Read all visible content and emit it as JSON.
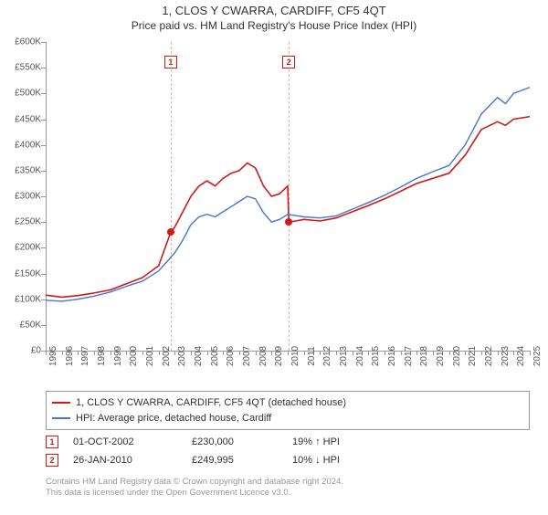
{
  "title": "1, CLOS Y CWARRA, CARDIFF, CF5 4QT",
  "subtitle": "Price paid vs. HM Land Registry's House Price Index (HPI)",
  "chart": {
    "type": "line",
    "y_axis": {
      "min": 0,
      "max": 600000,
      "tick_step": 50000,
      "tick_labels": [
        "£0",
        "£50K",
        "£100K",
        "£150K",
        "£200K",
        "£250K",
        "£300K",
        "£350K",
        "£400K",
        "£450K",
        "£500K",
        "£550K",
        "£600K"
      ]
    },
    "x_axis": {
      "years": [
        1995,
        1996,
        1997,
        1998,
        1999,
        2000,
        2001,
        2002,
        2003,
        2004,
        2005,
        2006,
        2007,
        2008,
        2009,
        2010,
        2011,
        2012,
        2013,
        2014,
        2015,
        2016,
        2017,
        2018,
        2019,
        2020,
        2021,
        2022,
        2023,
        2024,
        2025
      ]
    },
    "shade_band": {
      "start_year": 2002.75,
      "end_year": 2010.07,
      "color": "#eaf0fb"
    },
    "grid_color": "#eeeeee",
    "background_color": "#ffffff",
    "series": [
      {
        "name": "1, CLOS Y CWARRA, CARDIFF, CF5 4QT (detached house)",
        "color": "#d11919",
        "line_width": 1.6,
        "points": [
          [
            1995,
            108000
          ],
          [
            1996,
            104000
          ],
          [
            1997,
            107000
          ],
          [
            1998,
            112000
          ],
          [
            1999,
            118000
          ],
          [
            2000,
            130000
          ],
          [
            2001,
            142000
          ],
          [
            2002,
            165000
          ],
          [
            2002.75,
            230000
          ],
          [
            2003,
            240000
          ],
          [
            2003.5,
            270000
          ],
          [
            2004,
            300000
          ],
          [
            2004.5,
            320000
          ],
          [
            2005,
            330000
          ],
          [
            2005.5,
            320000
          ],
          [
            2006,
            335000
          ],
          [
            2006.5,
            345000
          ],
          [
            2007,
            350000
          ],
          [
            2007.5,
            365000
          ],
          [
            2008,
            355000
          ],
          [
            2008.5,
            320000
          ],
          [
            2009,
            300000
          ],
          [
            2009.5,
            305000
          ],
          [
            2010,
            320000
          ],
          [
            2010.07,
            249995
          ],
          [
            2010.5,
            252000
          ],
          [
            2011,
            255000
          ],
          [
            2012,
            252000
          ],
          [
            2013,
            258000
          ],
          [
            2014,
            270000
          ],
          [
            2015,
            282000
          ],
          [
            2016,
            295000
          ],
          [
            2017,
            310000
          ],
          [
            2018,
            325000
          ],
          [
            2019,
            335000
          ],
          [
            2020,
            345000
          ],
          [
            2021,
            380000
          ],
          [
            2022,
            430000
          ],
          [
            2023,
            445000
          ],
          [
            2023.5,
            438000
          ],
          [
            2024,
            450000
          ],
          [
            2025,
            455000
          ]
        ]
      },
      {
        "name": "HPI: Average price, detached house, Cardiff",
        "color": "#4a76c7",
        "line_width": 1.4,
        "points": [
          [
            1995,
            98000
          ],
          [
            1996,
            96000
          ],
          [
            1997,
            100000
          ],
          [
            1998,
            106000
          ],
          [
            1999,
            114000
          ],
          [
            2000,
            125000
          ],
          [
            2001,
            135000
          ],
          [
            2002,
            155000
          ],
          [
            2003,
            190000
          ],
          [
            2003.5,
            215000
          ],
          [
            2004,
            245000
          ],
          [
            2004.5,
            260000
          ],
          [
            2005,
            265000
          ],
          [
            2005.5,
            260000
          ],
          [
            2006,
            270000
          ],
          [
            2006.5,
            280000
          ],
          [
            2007,
            290000
          ],
          [
            2007.5,
            300000
          ],
          [
            2008,
            295000
          ],
          [
            2008.5,
            268000
          ],
          [
            2009,
            250000
          ],
          [
            2009.5,
            255000
          ],
          [
            2010,
            265000
          ],
          [
            2011,
            260000
          ],
          [
            2012,
            258000
          ],
          [
            2013,
            262000
          ],
          [
            2014,
            275000
          ],
          [
            2015,
            288000
          ],
          [
            2016,
            302000
          ],
          [
            2017,
            318000
          ],
          [
            2018,
            335000
          ],
          [
            2019,
            348000
          ],
          [
            2020,
            360000
          ],
          [
            2021,
            400000
          ],
          [
            2022,
            460000
          ],
          [
            2023,
            492000
          ],
          [
            2023.5,
            480000
          ],
          [
            2024,
            500000
          ],
          [
            2025,
            512000
          ]
        ]
      }
    ],
    "markers": [
      {
        "id": "1",
        "year": 2002.75,
        "value": 230000,
        "color": "#d11919",
        "vline_color": "#e6b3b3"
      },
      {
        "id": "2",
        "year": 2010.07,
        "value": 249995,
        "color": "#d11919",
        "vline_color": "#e6b3b3"
      }
    ]
  },
  "legend": {
    "rows": [
      {
        "color": "#d11919",
        "label": "1, CLOS Y CWARRA, CARDIFF, CF5 4QT (detached house)"
      },
      {
        "color": "#4a76c7",
        "label": "HPI: Average price, detached house, Cardiff"
      }
    ]
  },
  "sales_table": {
    "rows": [
      {
        "id": "1",
        "marker_color": "#d11919",
        "date": "01-OCT-2002",
        "price": "£230,000",
        "change": "19% ↑ HPI"
      },
      {
        "id": "2",
        "marker_color": "#d11919",
        "date": "26-JAN-2010",
        "price": "£249,995",
        "change": "10% ↓ HPI"
      }
    ]
  },
  "attribution": {
    "line1": "Contains HM Land Registry data © Crown copyright and database right 2024.",
    "line2": "This data is licensed under the Open Government Licence v3.0."
  }
}
